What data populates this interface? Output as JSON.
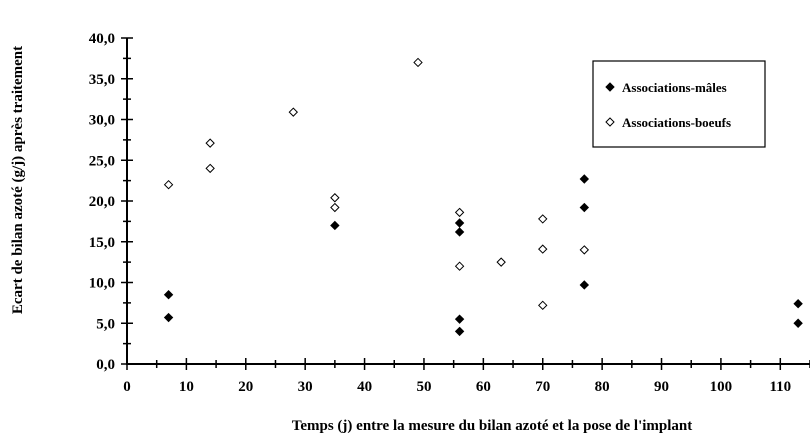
{
  "chart_data": {
    "type": "scatter",
    "xlabel": "Temps (j) entre la mesure du bilan azoté et la pose de l'implant",
    "ylabel": "Ecart de bilan azoté (g/j) après traitement",
    "xlim": [
      0,
      115
    ],
    "ylim": [
      0,
      40
    ],
    "x_ticks": [
      "0",
      "10",
      "20",
      "30",
      "40",
      "50",
      "60",
      "70",
      "80",
      "90",
      "100",
      "110"
    ],
    "y_ticks": [
      "0,0",
      "5,0",
      "10,0",
      "15,0",
      "20,0",
      "25,0",
      "30,0",
      "35,0",
      "40,0"
    ],
    "legend_position": "top-right",
    "series": [
      {
        "name": "Associations-mâles",
        "marker": "filled-diamond",
        "color": "#000000",
        "points": [
          [
            7,
            8.5
          ],
          [
            7,
            5.7
          ],
          [
            35,
            17.0
          ],
          [
            56,
            17.3
          ],
          [
            56,
            16.2
          ],
          [
            56,
            5.5
          ],
          [
            56,
            4.0
          ],
          [
            77,
            22.7
          ],
          [
            77,
            19.2
          ],
          [
            77,
            9.7
          ],
          [
            113,
            7.4
          ],
          [
            113,
            5.0
          ]
        ]
      },
      {
        "name": "Associations-boeufs",
        "marker": "open-diamond",
        "color": "#000000",
        "points": [
          [
            7,
            22.0
          ],
          [
            14,
            27.1
          ],
          [
            14,
            24.0
          ],
          [
            28,
            30.9
          ],
          [
            35,
            20.4
          ],
          [
            35,
            19.2
          ],
          [
            49,
            37.0
          ],
          [
            56,
            18.6
          ],
          [
            56,
            12.0
          ],
          [
            63,
            12.5
          ],
          [
            70,
            17.8
          ],
          [
            70,
            14.1
          ],
          [
            70,
            7.2
          ],
          [
            77,
            14.0
          ]
        ]
      }
    ]
  }
}
